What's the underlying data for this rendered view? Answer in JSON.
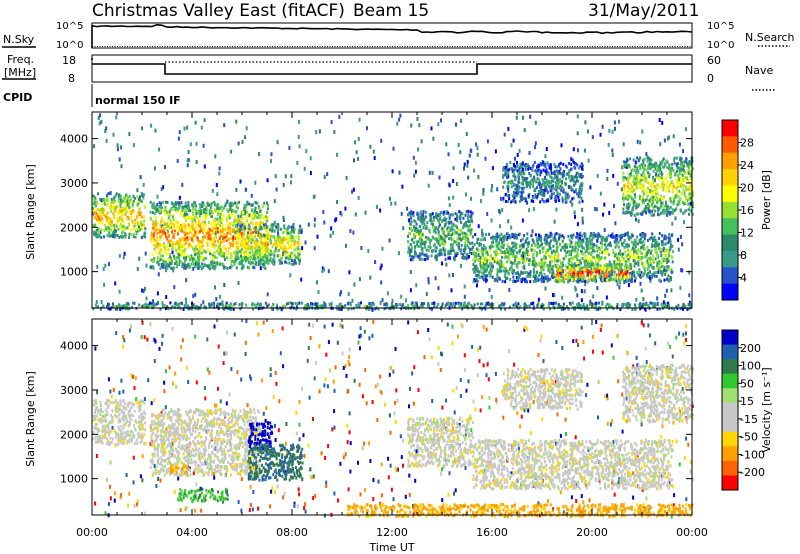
{
  "header": {
    "station": "Christmas Valley East (fitACF)",
    "beam": "Beam 15",
    "date": "31/May/2011"
  },
  "status_panel": {
    "nsky_label": "N.Sky",
    "nsky_ticks": [
      "10^5",
      "10^0"
    ],
    "nsearch_label": "N.Search",
    "nsearch_ticks": [
      "10^5",
      "10^0"
    ],
    "freq_label": "Freq.",
    "freq_unit": "[MHz]",
    "freq_ticks": [
      "18",
      "8"
    ],
    "nave_label": "Nave",
    "nave_ticks": [
      "60",
      "0"
    ],
    "cpid_label": "CPID",
    "cpid_value": "normal 150 IF"
  },
  "chart_data": [
    {
      "type": "heatmap",
      "name": "power",
      "ylabel": "Slant Range [km]",
      "xlabel": "Time UT",
      "xlim": [
        0,
        24
      ],
      "ylim": [
        180,
        4600
      ],
      "x_ticks": [
        "00:00",
        "04:00",
        "08:00",
        "12:00",
        "16:00",
        "20:00",
        "00:00"
      ],
      "y_ticks": [
        "1000",
        "2000",
        "3000",
        "4000"
      ],
      "colorbar_label": "Power [dB]",
      "colorbar_ticks": [
        "28",
        "24",
        "20",
        "16",
        "12",
        "8",
        "4"
      ],
      "colorbar_colors": [
        "#ff0000",
        "#ff5a00",
        "#ffa000",
        "#ffd200",
        "#ffff00",
        "#96e032",
        "#46c05a",
        "#2a8a6a",
        "#3a9a8a",
        "#2850c8",
        "#0000ff"
      ],
      "blobs": [
        {
          "t0": 0.0,
          "t1": 2.1,
          "r0": 1800,
          "r1": 2800,
          "level": 0.55
        },
        {
          "t0": 2.3,
          "t1": 7.0,
          "r0": 1100,
          "r1": 2600,
          "level": 0.6
        },
        {
          "t0": 5.7,
          "t1": 8.3,
          "r0": 1200,
          "r1": 2100,
          "level": 0.5
        },
        {
          "t0": 12.6,
          "t1": 15.2,
          "r0": 1300,
          "r1": 2400,
          "level": 0.3
        },
        {
          "t0": 15.2,
          "t1": 23.2,
          "r0": 800,
          "r1": 1900,
          "level": 0.35
        },
        {
          "t0": 18.5,
          "t1": 21.5,
          "r0": 800,
          "r1": 1200,
          "level": 0.7
        },
        {
          "t0": 21.2,
          "t1": 24.0,
          "r0": 2300,
          "r1": 3600,
          "level": 0.45
        },
        {
          "t0": 16.4,
          "t1": 19.6,
          "r0": 2600,
          "r1": 3500,
          "level": 0.2
        },
        {
          "t0": 0.0,
          "t1": 24.0,
          "r0": 180,
          "r1": 330,
          "level": 0.25
        }
      ]
    },
    {
      "type": "heatmap",
      "name": "velocity",
      "ylabel": "Slant Range [km]",
      "xlabel": "Time UT",
      "xlim": [
        0,
        24
      ],
      "ylim": [
        180,
        4600
      ],
      "x_ticks": [
        "00:00",
        "04:00",
        "08:00",
        "12:00",
        "16:00",
        "20:00",
        "00:00"
      ],
      "y_ticks": [
        "1000",
        "2000",
        "3000",
        "4000"
      ],
      "colorbar_label": "Velocity [m s⁻¹]",
      "colorbar_ticks": [
        "200",
        "100",
        "50",
        "15",
        "-15",
        "-50",
        "-100",
        "-200"
      ],
      "colorbar_colors": [
        "#0000c8",
        "#2060b0",
        "#307a4a",
        "#32c832",
        "#a0e070",
        "#c8c8c8",
        "#c8c8c8",
        "#ffd700",
        "#ffa000",
        "#ff6400",
        "#ff0000"
      ],
      "blobs": [
        {
          "t0": 0.0,
          "t1": 2.1,
          "r0": 1800,
          "r1": 2800,
          "v": 0
        },
        {
          "t0": 2.3,
          "t1": 6.7,
          "r0": 1100,
          "r1": 2600,
          "v": 0
        },
        {
          "t0": 3.1,
          "t1": 3.9,
          "r0": 1150,
          "r1": 1350,
          "v": -60
        },
        {
          "t0": 3.4,
          "t1": 5.4,
          "r0": 500,
          "r1": 800,
          "v": 40
        },
        {
          "t0": 6.2,
          "t1": 7.2,
          "r0": 1700,
          "r1": 2300,
          "v": 200
        },
        {
          "t0": 6.2,
          "t1": 8.4,
          "r0": 1000,
          "r1": 1800,
          "v": 70
        },
        {
          "t0": 12.6,
          "t1": 15.2,
          "r0": 1300,
          "r1": 2400,
          "v": 0
        },
        {
          "t0": 15.2,
          "t1": 23.2,
          "r0": 800,
          "r1": 1900,
          "v": 0
        },
        {
          "t0": 21.2,
          "t1": 24.0,
          "r0": 2300,
          "r1": 3600,
          "v": 0
        },
        {
          "t0": 16.4,
          "t1": 19.6,
          "r0": 2600,
          "r1": 3500,
          "v": 0
        },
        {
          "t0": 10.2,
          "t1": 24.0,
          "r0": 180,
          "r1": 450,
          "v": -60
        }
      ]
    }
  ]
}
